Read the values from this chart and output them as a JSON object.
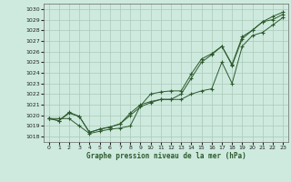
{
  "title": "Graphe pression niveau de la mer (hPa)",
  "bg_color": "#ceeade",
  "grid_color": "#aacaba",
  "line_color": "#2d5a2d",
  "xlim": [
    -0.5,
    23.5
  ],
  "ylim": [
    1017.5,
    1030.5
  ],
  "xticks": [
    0,
    1,
    2,
    3,
    4,
    5,
    6,
    7,
    8,
    9,
    10,
    11,
    12,
    13,
    14,
    15,
    16,
    17,
    18,
    19,
    20,
    21,
    22,
    23
  ],
  "yticks": [
    1018,
    1019,
    1020,
    1021,
    1022,
    1023,
    1024,
    1025,
    1026,
    1027,
    1028,
    1029,
    1030
  ],
  "series": [
    [
      1019.7,
      1019.7,
      1019.7,
      1019.0,
      1018.3,
      1018.5,
      1018.7,
      1018.8,
      1019.0,
      1020.9,
      1022.0,
      1022.2,
      1022.3,
      1022.3,
      1023.9,
      1025.3,
      1025.8,
      1026.5,
      1024.8,
      1027.4,
      1028.0,
      1028.8,
      1029.3,
      1029.7
    ],
    [
      1019.7,
      1019.5,
      1020.2,
      1019.9,
      1018.4,
      1018.7,
      1018.9,
      1019.2,
      1020.0,
      1020.8,
      1021.2,
      1021.5,
      1021.5,
      1021.5,
      1022.0,
      1022.3,
      1022.5,
      1025.0,
      1023.0,
      1026.5,
      1027.5,
      1027.8,
      1028.5,
      1029.2
    ],
    [
      1019.7,
      1019.5,
      1020.3,
      1019.9,
      1018.4,
      1018.7,
      1018.9,
      1019.2,
      1020.2,
      1021.0,
      1021.3,
      1021.5,
      1021.5,
      1022.0,
      1023.5,
      1025.0,
      1025.7,
      1026.5,
      1024.7,
      1027.2,
      1028.0,
      1028.8,
      1029.0,
      1029.5
    ]
  ]
}
